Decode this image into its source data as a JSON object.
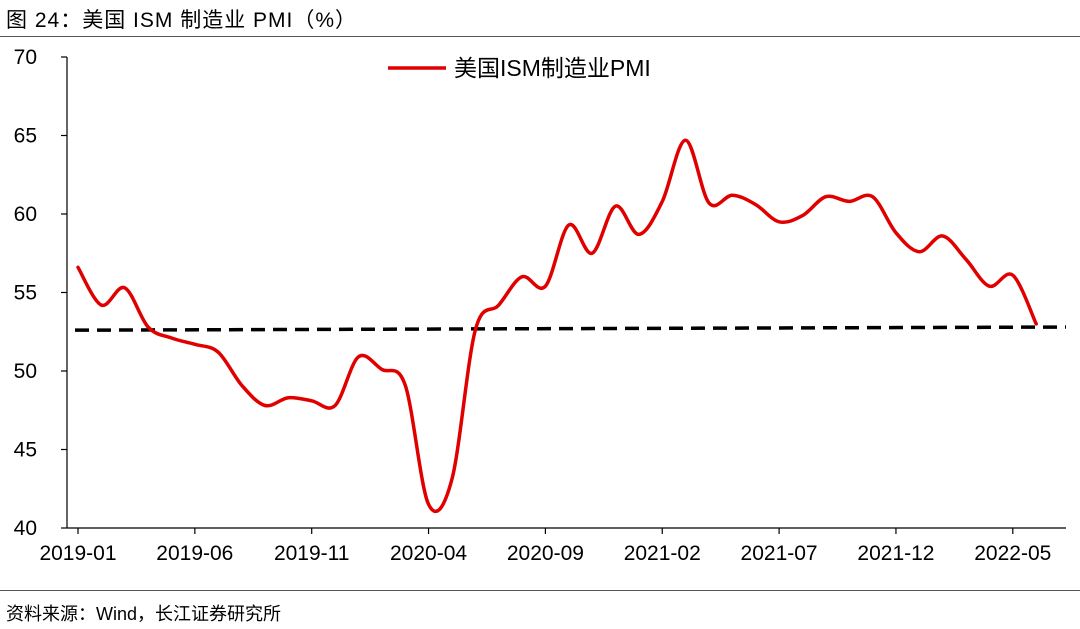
{
  "figure_title": "图 24：美国 ISM 制造业 PMI（%）",
  "source": "资料来源：Wind，长江证券研究所",
  "colors": {
    "series": "#e00000",
    "reference": "#000000"
  },
  "chart_data": {
    "type": "line",
    "title": "",
    "xlabel": "",
    "ylabel": "",
    "ylim": [
      40,
      70
    ],
    "y_ticks": [
      40,
      45,
      50,
      55,
      60,
      65,
      70
    ],
    "x_tick_labels": [
      "2019-01",
      "2019-06",
      "2019-11",
      "2020-04",
      "2020-09",
      "2021-02",
      "2021-07",
      "2021-12",
      "2022-05"
    ],
    "grid": false,
    "legend_position": "top-center",
    "x": [
      "2019-01",
      "2019-02",
      "2019-03",
      "2019-04",
      "2019-05",
      "2019-06",
      "2019-07",
      "2019-08",
      "2019-09",
      "2019-10",
      "2019-11",
      "2019-12",
      "2020-01",
      "2020-02",
      "2020-03",
      "2020-04",
      "2020-05",
      "2020-06",
      "2020-07",
      "2020-08",
      "2020-09",
      "2020-10",
      "2020-11",
      "2020-12",
      "2021-01",
      "2021-02",
      "2021-03",
      "2021-04",
      "2021-05",
      "2021-06",
      "2021-07",
      "2021-08",
      "2021-09",
      "2021-10",
      "2021-11",
      "2021-12",
      "2022-01",
      "2022-02",
      "2022-03",
      "2022-04",
      "2022-05",
      "2022-06"
    ],
    "series": [
      {
        "name": "美国ISM制造业PMI",
        "values": [
          56.6,
          54.2,
          55.3,
          52.8,
          52.1,
          51.7,
          51.2,
          49.1,
          47.8,
          48.3,
          48.1,
          47.8,
          50.9,
          50.1,
          49.1,
          41.5,
          43.1,
          52.6,
          54.2,
          56.0,
          55.4,
          59.3,
          57.5,
          60.5,
          58.7,
          60.8,
          64.7,
          60.7,
          61.2,
          60.6,
          59.5,
          59.9,
          61.1,
          60.8,
          61.1,
          58.8,
          57.6,
          58.6,
          57.1,
          55.4,
          56.1,
          53.0
        ]
      }
    ],
    "reference_line": {
      "start": 52.6,
      "end": 52.8,
      "style": "dashed"
    }
  }
}
